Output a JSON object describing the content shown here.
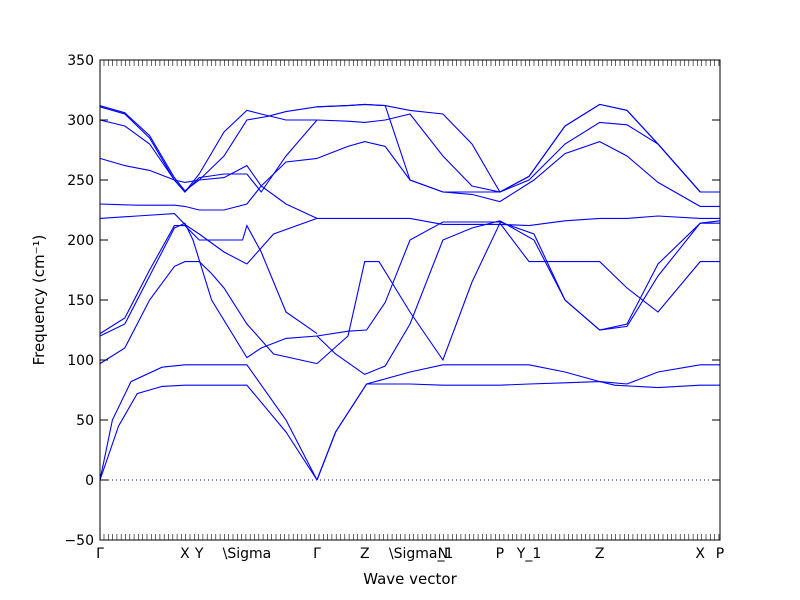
{
  "chart_data": {
    "type": "line",
    "xlabel": "Wave vector",
    "ylabel": "Frequency (cm⁻¹)",
    "ylim": [
      -50,
      350
    ],
    "yticks": [
      -50,
      0,
      50,
      100,
      150,
      200,
      250,
      300,
      350
    ],
    "xlim": [
      0,
      1
    ],
    "high_symmetry_points": [
      {
        "label": "Γ",
        "x": 0.0
      },
      {
        "label": "X",
        "x": 0.137
      },
      {
        "label": "Y",
        "x": 0.16
      },
      {
        "label": "\\Sigma",
        "x": 0.237
      },
      {
        "label": "Γ",
        "x": 0.35
      },
      {
        "label": "Z",
        "x": 0.427
      },
      {
        "label": "\\Sigma_1",
        "x": 0.518
      },
      {
        "label": "N",
        "x": 0.553
      },
      {
        "label": "P",
        "x": 0.645
      },
      {
        "label": "Y_1",
        "x": 0.692
      },
      {
        "label": "Z",
        "x": 0.806
      },
      {
        "label": "X",
        "x": 0.968
      },
      {
        "label": "P",
        "x": 1.0
      }
    ],
    "zero_line": 0,
    "line_color": "#0000ff",
    "series": [
      {
        "x": [
          0,
          0.02,
          0.05,
          0.1,
          0.137,
          0.16,
          0.237,
          0.3,
          0.35
        ],
        "y": [
          0,
          50,
          82,
          94,
          96,
          96,
          96,
          50,
          0
        ]
      },
      {
        "x": [
          0,
          0.03,
          0.06,
          0.1,
          0.137,
          0.16,
          0.237,
          0.3,
          0.35
        ],
        "y": [
          0,
          45,
          72,
          78,
          79,
          79,
          79,
          40,
          0
        ]
      },
      {
        "x": [
          0.35,
          0.38,
          0.43,
          0.5,
          0.553,
          0.6,
          0.645,
          0.692,
          0.75,
          0.806,
          0.85,
          0.9,
          0.968,
          1.0
        ],
        "y": [
          0,
          40,
          80,
          90,
          96,
          96,
          96,
          96,
          90,
          82,
          80,
          90,
          96,
          96
        ]
      },
      {
        "x": [
          0.35,
          0.38,
          0.43,
          0.5,
          0.553,
          0.6,
          0.645,
          0.692,
          0.75,
          0.806,
          0.83,
          0.9,
          0.968,
          1.0
        ],
        "y": [
          0,
          40,
          80,
          80,
          79,
          79,
          79,
          80,
          81,
          82,
          79,
          77,
          79,
          79
        ]
      },
      {
        "x": [
          0,
          0.04,
          0.08,
          0.12,
          0.137,
          0.16,
          0.18,
          0.2,
          0.237,
          0.28,
          0.35
        ],
        "y": [
          97,
          110,
          150,
          178,
          182,
          182,
          172,
          160,
          130,
          105,
          97
        ]
      },
      {
        "x": [
          0.35,
          0.4,
          0.427,
          0.45,
          0.5,
          0.553,
          0.6,
          0.645,
          0.692,
          0.75,
          0.806,
          0.85,
          0.9,
          0.968,
          1.0
        ],
        "y": [
          97,
          120,
          182,
          182,
          140,
          100,
          165,
          214,
          182,
          182,
          182,
          160,
          140,
          182,
          182
        ]
      },
      {
        "x": [
          0,
          0.04,
          0.08,
          0.12,
          0.137,
          0.15,
          0.18,
          0.237,
          0.26,
          0.3,
          0.35
        ],
        "y": [
          120,
          130,
          170,
          210,
          214,
          200,
          150,
          102,
          110,
          118,
          120
        ]
      },
      {
        "x": [
          0,
          0.04,
          0.08,
          0.12,
          0.137,
          0.16,
          0.2,
          0.23,
          0.237,
          0.26,
          0.3,
          0.35
        ],
        "y": [
          122,
          135,
          175,
          212,
          212,
          200,
          200,
          200,
          212,
          190,
          140,
          122
        ]
      },
      {
        "x": [
          0.35,
          0.38,
          0.427,
          0.46,
          0.5,
          0.553,
          0.6,
          0.645,
          0.7,
          0.75,
          0.806,
          0.85,
          0.9,
          0.968,
          1.0
        ],
        "y": [
          120,
          105,
          88,
          95,
          130,
          200,
          210,
          216,
          200,
          150,
          125,
          130,
          180,
          214,
          214
        ]
      },
      {
        "x": [
          0.35,
          0.4,
          0.43,
          0.46,
          0.5,
          0.553,
          0.6,
          0.645,
          0.7,
          0.75,
          0.806,
          0.85,
          0.9,
          0.968,
          1.0
        ],
        "y": [
          120,
          124,
          125,
          148,
          200,
          215,
          215,
          215,
          205,
          150,
          125,
          128,
          170,
          214,
          216
        ]
      },
      {
        "x": [
          0,
          0.06,
          0.12,
          0.137,
          0.16,
          0.2,
          0.237,
          0.28,
          0.35
        ],
        "y": [
          218,
          220,
          222,
          213,
          205,
          190,
          180,
          205,
          218
        ]
      },
      {
        "x": [
          0.35,
          0.427,
          0.5,
          0.553,
          0.6,
          0.645,
          0.692,
          0.75,
          0.806,
          0.85,
          0.9,
          0.968,
          1.0
        ],
        "y": [
          218,
          218,
          218,
          213,
          213,
          213,
          212,
          216,
          218,
          218,
          220,
          218,
          218
        ]
      },
      {
        "x": [
          0,
          0.06,
          0.12,
          0.137,
          0.16,
          0.2,
          0.237,
          0.26,
          0.3,
          0.35
        ],
        "y": [
          230,
          229,
          229,
          228,
          225,
          225,
          230,
          245,
          265,
          268
        ]
      },
      {
        "x": [
          0.35,
          0.4,
          0.427,
          0.46,
          0.5,
          0.553,
          0.6,
          0.645,
          0.7,
          0.75,
          0.806,
          0.85,
          0.9,
          0.968,
          1.0
        ],
        "y": [
          268,
          278,
          282,
          278,
          250,
          240,
          238,
          232,
          250,
          272,
          282,
          270,
          248,
          228,
          228
        ]
      },
      {
        "x": [
          0,
          0.04,
          0.08,
          0.12,
          0.137,
          0.16,
          0.2,
          0.237,
          0.26,
          0.3,
          0.35
        ],
        "y": [
          268,
          262,
          258,
          250,
          248,
          250,
          252,
          262,
          245,
          230,
          218
        ]
      },
      {
        "x": [
          0,
          0.04,
          0.08,
          0.12,
          0.137,
          0.16,
          0.2,
          0.237,
          0.26,
          0.3,
          0.35
        ],
        "y": [
          300,
          295,
          280,
          250,
          240,
          252,
          255,
          255,
          240,
          270,
          300
        ]
      },
      {
        "x": [
          0.35,
          0.4,
          0.427,
          0.46,
          0.5,
          0.553,
          0.6,
          0.645,
          0.692,
          0.75,
          0.806,
          0.85,
          0.9,
          0.968,
          1.0
        ],
        "y": [
          300,
          299,
          298,
          300,
          305,
          270,
          245,
          240,
          250,
          280,
          298,
          296,
          280,
          240,
          240
        ]
      },
      {
        "x": [
          0,
          0.04,
          0.08,
          0.12,
          0.137,
          0.16,
          0.2,
          0.237,
          0.26,
          0.3,
          0.35
        ],
        "y": [
          311,
          305,
          285,
          250,
          240,
          255,
          290,
          308,
          305,
          300,
          300
        ]
      },
      {
        "x": [
          0,
          0.04,
          0.08,
          0.12,
          0.137,
          0.16,
          0.2,
          0.237,
          0.27,
          0.3,
          0.35
        ],
        "y": [
          312,
          306,
          287,
          252,
          241,
          250,
          270,
          300,
          303,
          307,
          311
        ]
      },
      {
        "x": [
          0.35,
          0.4,
          0.427,
          0.46,
          0.5,
          0.553,
          0.6,
          0.645,
          0.692,
          0.75,
          0.806,
          0.85,
          0.9,
          0.968,
          1.0
        ],
        "y": [
          311,
          312,
          313,
          312,
          308,
          305,
          280,
          240,
          253,
          295,
          313,
          308,
          280,
          240,
          240
        ]
      },
      {
        "x": [
          0.35,
          0.4,
          0.427,
          0.46,
          0.5,
          0.553,
          0.6,
          0.645,
          0.692,
          0.75,
          0.806,
          0.85,
          0.9,
          0.968,
          1.0
        ],
        "y": [
          311,
          312,
          313,
          312,
          250,
          240,
          240,
          240,
          253,
          295,
          313,
          308,
          280,
          240,
          240
        ]
      }
    ]
  }
}
